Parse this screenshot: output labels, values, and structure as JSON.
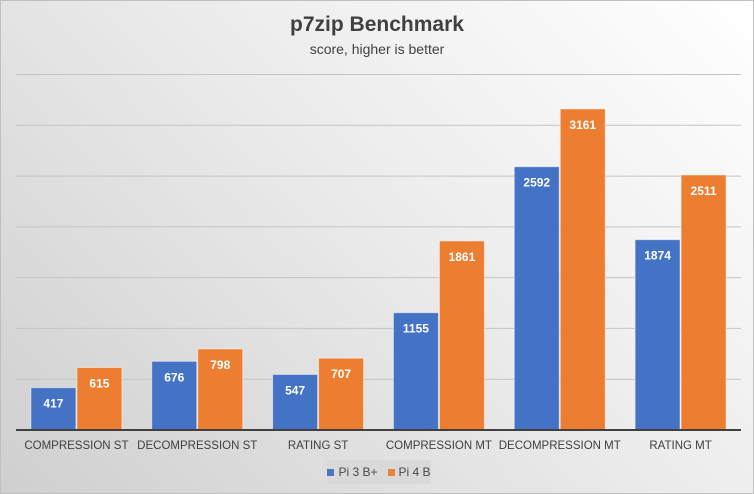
{
  "chart_data": {
    "type": "bar",
    "title": "p7zip Benchmark",
    "subtitle": "score, higher is better",
    "categories": [
      "COMPRESSION ST",
      "DECOMPRESSION ST",
      "RATING ST",
      "COMPRESSION MT",
      "DECOMPRESSION MT",
      "RATING MT"
    ],
    "series": [
      {
        "name": "Pi 3 B+",
        "color": "#4472c4",
        "values": [
          417,
          676,
          547,
          1155,
          2592,
          1874
        ]
      },
      {
        "name": "Pi 4 B",
        "color": "#ed7d31",
        "values": [
          615,
          798,
          707,
          1861,
          3161,
          2511
        ]
      }
    ],
    "ylim": [
      0,
      3500
    ],
    "ygrid_step": 500,
    "grid": true,
    "y_tick_labels_shown": false,
    "data_labels": true,
    "legend_position": "bottom"
  }
}
